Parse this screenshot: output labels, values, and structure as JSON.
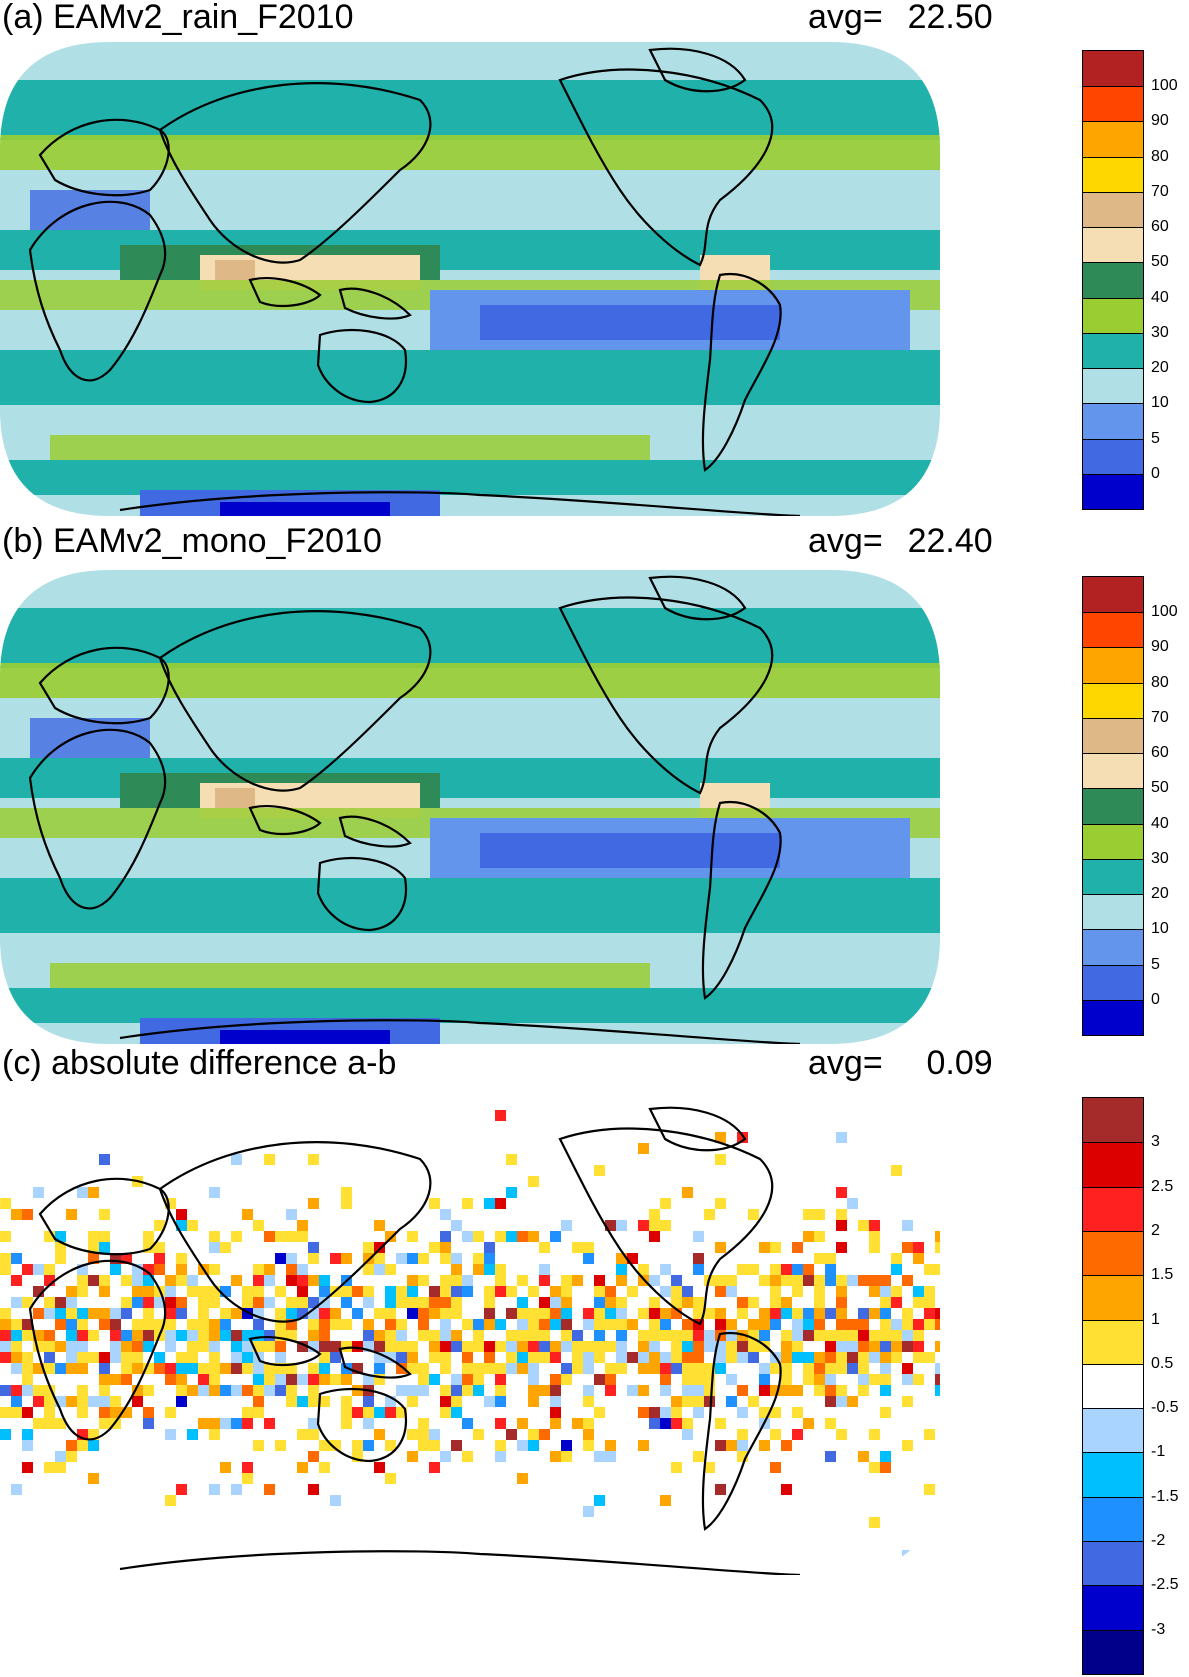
{
  "panels": [
    {
      "id": "a",
      "title": "(a) EAMv2_rain_F2010",
      "avg_label": "avg=",
      "avg_value": "22.50",
      "colorbar": {
        "colors": [
          "#b22222",
          "#ff4500",
          "#ffa500",
          "#ffd700",
          "#deb887",
          "#f5deb3",
          "#2e8b57",
          "#9acd32",
          "#20b2aa",
          "#b0e0e6",
          "#6495ed",
          "#4169e1",
          "#0000cd"
        ],
        "labels": [
          "100",
          "90",
          "80",
          "70",
          "60",
          "50",
          "40",
          "30",
          "20",
          "10",
          "5",
          "0"
        ]
      }
    },
    {
      "id": "b",
      "title": "(b) EAMv2_mono_F2010",
      "avg_label": "avg=",
      "avg_value": "22.40",
      "colorbar": {
        "colors": [
          "#b22222",
          "#ff4500",
          "#ffa500",
          "#ffd700",
          "#deb887",
          "#f5deb3",
          "#2e8b57",
          "#9acd32",
          "#20b2aa",
          "#b0e0e6",
          "#6495ed",
          "#4169e1",
          "#0000cd"
        ],
        "labels": [
          "100",
          "90",
          "80",
          "70",
          "60",
          "50",
          "40",
          "30",
          "20",
          "10",
          "5",
          "0"
        ]
      }
    },
    {
      "id": "c",
      "title": "(c) absolute difference a-b",
      "avg_label": "avg=",
      "avg_value": "0.09",
      "colorbar": {
        "colors": [
          "#a52a2a",
          "#dc0000",
          "#ff2020",
          "#ff6a00",
          "#ffa500",
          "#ffe033",
          "#ffffff",
          "#a8d4ff",
          "#00bfff",
          "#1e90ff",
          "#4169e1",
          "#0000cd",
          "#00008b"
        ],
        "labels": [
          "3",
          "2.5",
          "2",
          "1.5",
          "1",
          "0.5",
          "-0.5",
          "-1",
          "-1.5",
          "-2",
          "-2.5",
          "-3"
        ]
      }
    }
  ]
}
